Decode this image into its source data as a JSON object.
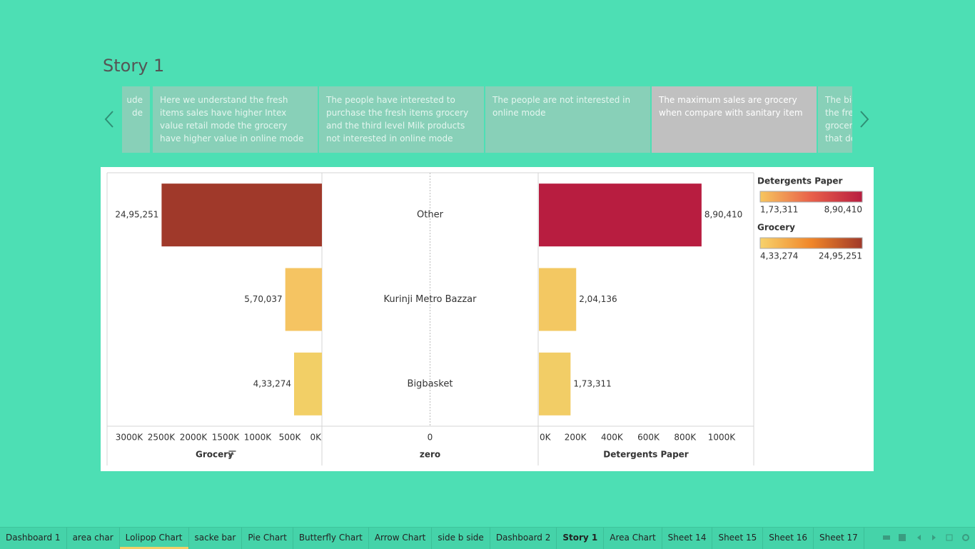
{
  "title": "Story 1",
  "story_points": [
    "ude\nde",
    "Here we understand the fresh items sales have higher Intex value retail mode the grocery have higher value in online mode",
    "The people have interested to purchase the fresh items grocery and the third level Milk products not interested in online mode",
    "The people are not interested in online mode",
    "The maximum sales are grocery when compare with sanitary item",
    "The big\nthe fre\ngrocer\nthat de"
  ],
  "selected_story_point": 4,
  "chart_data": {
    "type": "butterfly",
    "categories": [
      "Other",
      "Kurinji Metro Bazzar",
      "Bigbasket"
    ],
    "series": [
      {
        "name": "Grocery",
        "values": [
          2495251,
          570037,
          433274
        ],
        "value_labels": [
          "24,95,251",
          "5,70,037",
          "4,33,274"
        ],
        "colors": [
          "#a0392a",
          "#f5c462",
          "#f2cf66"
        ],
        "reversed": true,
        "sorted": true,
        "xlim": [
          0,
          3344000
        ],
        "xticks": [
          {
            "value": 3000000,
            "label": "3000K"
          },
          {
            "value": 2500000,
            "label": "2500K"
          },
          {
            "value": 2000000,
            "label": "2000K"
          },
          {
            "value": 1500000,
            "label": "1500K"
          },
          {
            "value": 1000000,
            "label": "1000K"
          },
          {
            "value": 500000,
            "label": "500K"
          },
          {
            "value": 0,
            "label": "0K"
          }
        ],
        "color_range": [
          {
            "value": 433274,
            "label": "4,33,274"
          },
          {
            "value": 2495251,
            "label": "24,95,251"
          }
        ],
        "gradient": [
          "#f7d26c",
          "#f0862a",
          "#a0392a"
        ]
      },
      {
        "name": "Detergents Paper",
        "values": [
          890410,
          204136,
          173311
        ],
        "value_labels": [
          "8,90,410",
          "2,04,136",
          "1,73,311"
        ],
        "colors": [
          "#b81d40",
          "#f3c862",
          "#f2cd66"
        ],
        "reversed": false,
        "xlim": [
          0,
          1180000
        ],
        "xticks": [
          {
            "value": 0,
            "label": "0K"
          },
          {
            "value": 200000,
            "label": "200K"
          },
          {
            "value": 400000,
            "label": "400K"
          },
          {
            "value": 600000,
            "label": "600K"
          },
          {
            "value": 800000,
            "label": "800K"
          },
          {
            "value": 1000000,
            "label": "1000K"
          }
        ],
        "color_range": [
          {
            "value": 173311,
            "label": "1,73,311"
          },
          {
            "value": 890410,
            "label": "8,90,410"
          }
        ],
        "gradient": [
          "#f7c65e",
          "#e8604a",
          "#b81d40"
        ]
      }
    ],
    "center": {
      "title": "zero",
      "xlim": [
        -1,
        1
      ],
      "xticks": [
        0
      ]
    }
  },
  "tabs": [
    "Dashboard 1",
    "area char",
    "Lolipop Chart",
    "sacke bar",
    "Pie Chart",
    "Butterfly Chart",
    "Arrow Chart",
    "side b side",
    "Dashboard 2",
    "Story 1",
    "Area Chart",
    "Sheet 14",
    "Sheet 15",
    "Sheet 16",
    "Sheet 17"
  ],
  "active_tab": 9,
  "highlighted_tab": 2
}
